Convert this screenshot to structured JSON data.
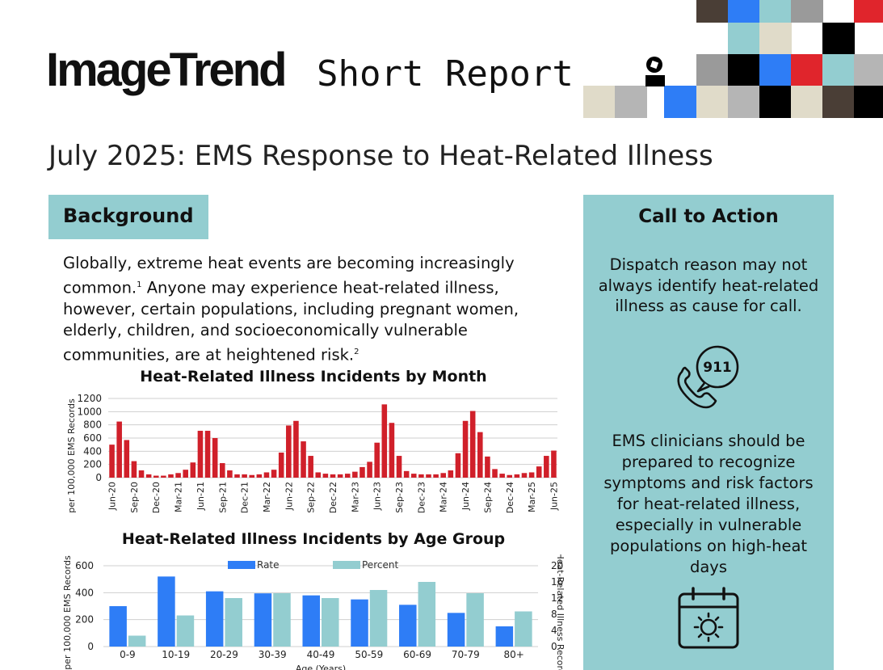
{
  "header": {
    "logo_text": "ImageTrend",
    "subtitle": "Short Report",
    "report_title": "July 2025: EMS Response to Heat-Related Illness"
  },
  "background": {
    "heading": "Background",
    "p1": "Globally, extreme heat events are becoming increasingly common.",
    "sup1": "1",
    "p2": " Anyone may experience heat-related illness, however, certain populations, including pregnant women, elderly, children, and socioeconomically vulnerable communities, are at heightened risk.",
    "sup2": "2"
  },
  "call_to_action": {
    "heading": "Call to Action",
    "paragraph1": "Dispatch reason may not always identify heat-related illness as cause for call.",
    "phone_icon_label": "911",
    "paragraph2": "EMS clinicians should be prepared to recognize symptoms and risk factors for heat-related illness, especially in vulnerable populations on high-heat days"
  },
  "icons": [
    "phone-911-icon",
    "calendar-sun-icon"
  ],
  "colors": {
    "accent_teal": "#93cdd0",
    "bar_red": "#d0202a",
    "bar_blue": "#2e7df6",
    "bar_teal": "#93cdd0"
  },
  "chart_data": [
    {
      "type": "bar",
      "title": "Heat-Related Illness Incidents by Month",
      "ylabel": "per 100,000 EMS Records",
      "ylim": [
        0,
        1200
      ],
      "yticks": [
        "0",
        "200",
        "400",
        "600",
        "800",
        "1000",
        "1200"
      ],
      "x_tick_labels": [
        "Jun-20",
        "Sep-20",
        "Dec-20",
        "Mar-21",
        "Jun-21",
        "Sep-21",
        "Dec-21",
        "Mar-22",
        "Jun-22",
        "Sep-22",
        "Dec-22",
        "Mar-23",
        "Jun-23",
        "Sep-23",
        "Dec-23",
        "Mar-24",
        "Jun-24",
        "Sep-24",
        "Dec-24",
        "Mar-25",
        "Jun-25"
      ],
      "categories": [
        "Jun-20",
        "Jul-20",
        "Aug-20",
        "Sep-20",
        "Oct-20",
        "Nov-20",
        "Dec-20",
        "Jan-21",
        "Feb-21",
        "Mar-21",
        "Apr-21",
        "May-21",
        "Jun-21",
        "Jul-21",
        "Aug-21",
        "Sep-21",
        "Oct-21",
        "Nov-21",
        "Dec-21",
        "Jan-22",
        "Feb-22",
        "Mar-22",
        "Apr-22",
        "May-22",
        "Jun-22",
        "Jul-22",
        "Aug-22",
        "Sep-22",
        "Oct-22",
        "Nov-22",
        "Dec-22",
        "Jan-23",
        "Feb-23",
        "Mar-23",
        "Apr-23",
        "May-23",
        "Jun-23",
        "Jul-23",
        "Aug-23",
        "Sep-23",
        "Oct-23",
        "Nov-23",
        "Dec-23",
        "Jan-24",
        "Feb-24",
        "Mar-24",
        "Apr-24",
        "May-24",
        "Jun-24",
        "Jul-24",
        "Aug-24",
        "Sep-24",
        "Oct-24",
        "Nov-24",
        "Dec-24",
        "Jan-25",
        "Feb-25",
        "Mar-25",
        "Apr-25",
        "May-25",
        "Jun-25"
      ],
      "values": [
        500,
        850,
        570,
        250,
        110,
        50,
        30,
        30,
        50,
        70,
        120,
        230,
        710,
        710,
        600,
        220,
        110,
        50,
        50,
        40,
        50,
        80,
        120,
        380,
        790,
        860,
        550,
        330,
        80,
        60,
        50,
        50,
        60,
        90,
        160,
        240,
        530,
        1110,
        830,
        330,
        100,
        60,
        50,
        50,
        50,
        70,
        110,
        370,
        860,
        1010,
        690,
        320,
        130,
        60,
        40,
        50,
        70,
        80,
        170,
        330,
        410
      ]
    },
    {
      "type": "bar",
      "title": "Heat-Related Illness Incidents by Age Group",
      "xlabel": "Age (Years)",
      "ylabel": "per 100,000 EMS Records",
      "y2label": "% of Heat-Related Illness Records",
      "ylim": [
        0,
        600
      ],
      "y2lim": [
        0,
        20
      ],
      "yticks": [
        "0",
        "200",
        "400",
        "600"
      ],
      "y2ticks": [
        "0",
        "4",
        "8",
        "12",
        "16",
        "20"
      ],
      "legend_position": "top",
      "categories": [
        "0-9",
        "10-19",
        "20-29",
        "30-39",
        "40-49",
        "50-59",
        "60-69",
        "70-79",
        "80+"
      ],
      "series": [
        {
          "name": "Rate",
          "axis": "left",
          "values": [
            300,
            520,
            410,
            395,
            380,
            350,
            310,
            250,
            150
          ]
        },
        {
          "name": "Percent",
          "axis": "right",
          "values": [
            2.7,
            7.7,
            12,
            13.2,
            12,
            14,
            16,
            13.2,
            8.7
          ]
        }
      ]
    }
  ]
}
